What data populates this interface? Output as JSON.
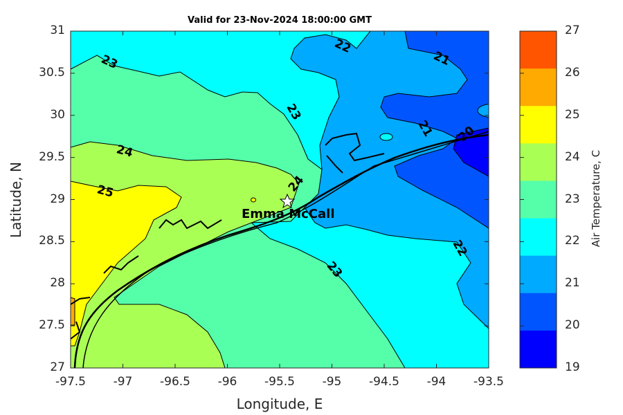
{
  "title": "Valid for 23-Nov-2024 18:00:00 GMT",
  "station": {
    "name": "Emma McCall",
    "lon": -95.42,
    "lat": 28.98,
    "icon": "star-icon"
  },
  "chart_data": {
    "type": "contour",
    "title": "Valid for 23-Nov-2024 18:00:00 GMT",
    "xlabel": "Longitude, E",
    "ylabel": "Latitude, N",
    "xlim": [
      -97.5,
      -93.5
    ],
    "ylim": [
      27,
      31
    ],
    "xticks": [
      "-97.5",
      "-97",
      "-96.5",
      "-96",
      "-95.5",
      "-95",
      "-94.5",
      "-94",
      "-93.5"
    ],
    "yticks": [
      "31",
      "30.5",
      "30",
      "29.5",
      "29",
      "28.5",
      "28",
      "27.5",
      "27"
    ],
    "colorbar": {
      "label": "Air Temperature, C",
      "range": [
        19,
        27
      ],
      "ticks": [
        "27",
        "26",
        "25",
        "24",
        "23",
        "22",
        "21",
        "20",
        "19"
      ],
      "colors": [
        "#FF5500",
        "#FFAA00",
        "#FFFF00",
        "#AAFF55",
        "#55FFAA",
        "#00FFFF",
        "#00AAFF",
        "#0055FF",
        "#0000FF"
      ]
    },
    "contour_labels": [
      "23",
      "22",
      "21",
      "23",
      "24",
      "21",
      "20",
      "25",
      "24",
      "22",
      "23"
    ]
  }
}
